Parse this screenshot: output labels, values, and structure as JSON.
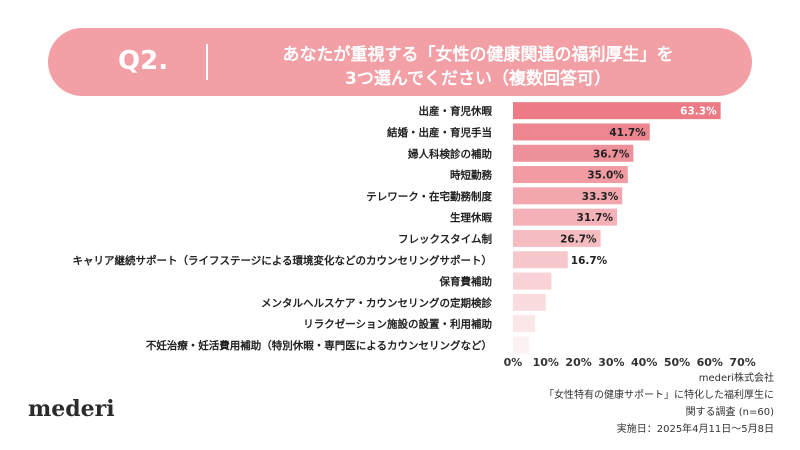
{
  "header": {
    "q": "Q2.",
    "line1": "あなたが重視する「女性の健康関連の福利厚生」を",
    "line2": "3つ選んでください（複数回答可）"
  },
  "brand": {
    "logo": "mederi"
  },
  "footer": {
    "company": "mederi株式会社",
    "survey1": "「女性特有の健康サポート」に特化した福利厚生に",
    "survey2": "関する調査 (n=60)",
    "date": "実施日：2025年4月11日〜5月8日"
  },
  "colors": {
    "header_bg": "#f2a0a6",
    "bar_top": "#ec7b86",
    "bar_bottom": "#fdf2f2"
  },
  "chart_data": {
    "type": "bar",
    "orientation": "horizontal",
    "categories": [
      "出産・育児休暇",
      "結婚・出産・育児手当",
      "婦人科検診の補助",
      "時短勤務",
      "テレワーク・在宅勤務制度",
      "生理休暇",
      "フレックスタイム制",
      "キャリア継続サポート（ライフステージによる環境変化などのカウンセリングサポート）",
      "保育費補助",
      "メンタルヘルスケア・カウンセリングの定期検診",
      "リラクゼーション施設の設置・利用補助",
      "不妊治療・妊活費用補助（特別休暇・専門医によるカウンセリングなど）"
    ],
    "values": [
      63.3,
      41.7,
      36.7,
      35.0,
      33.3,
      31.7,
      26.7,
      16.7,
      11.7,
      10.0,
      6.7,
      5.0
    ],
    "data_labels": [
      "63.3%",
      "41.7%",
      "36.7%",
      "35.0%",
      "33.3%",
      "31.7%",
      "26.7%",
      "16.7%",
      "",
      "",
      "",
      ""
    ],
    "xlim": [
      0,
      70
    ],
    "xticks": [
      "0%",
      "10%",
      "20%",
      "30%",
      "40%",
      "50%",
      "60%",
      "70%"
    ],
    "xlabel": "",
    "ylabel": ""
  }
}
